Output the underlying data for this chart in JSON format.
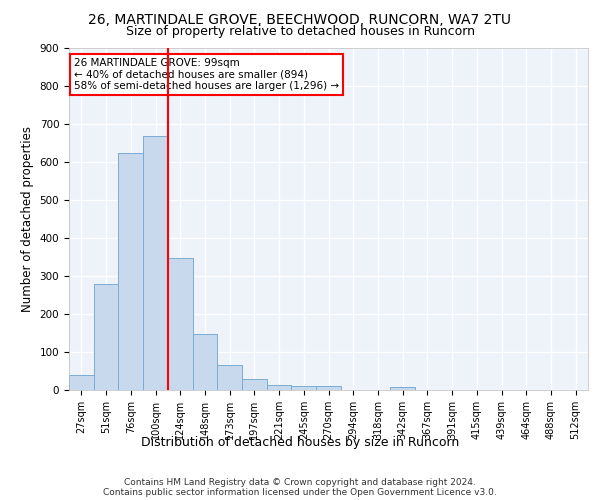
{
  "title1": "26, MARTINDALE GROVE, BEECHWOOD, RUNCORN, WA7 2TU",
  "title2": "Size of property relative to detached houses in Runcorn",
  "xlabel": "Distribution of detached houses by size in Runcorn",
  "ylabel": "Number of detached properties",
  "categories": [
    "27sqm",
    "51sqm",
    "76sqm",
    "100sqm",
    "124sqm",
    "148sqm",
    "173sqm",
    "197sqm",
    "221sqm",
    "245sqm",
    "270sqm",
    "294sqm",
    "318sqm",
    "342sqm",
    "367sqm",
    "391sqm",
    "415sqm",
    "439sqm",
    "464sqm",
    "488sqm",
    "512sqm"
  ],
  "values": [
    40,
    278,
    622,
    668,
    348,
    148,
    65,
    28,
    13,
    11,
    11,
    0,
    0,
    8,
    0,
    0,
    0,
    0,
    0,
    0,
    0
  ],
  "bar_color": "#c8d9ee",
  "bar_edge_color": "#7aadd4",
  "property_line_x": 3.5,
  "annotation_text": "26 MARTINDALE GROVE: 99sqm\n← 40% of detached houses are smaller (894)\n58% of semi-detached houses are larger (1,296) →",
  "annotation_box_color": "white",
  "annotation_box_edge": "red",
  "vline_color": "red",
  "ylim": [
    0,
    900
  ],
  "yticks": [
    0,
    100,
    200,
    300,
    400,
    500,
    600,
    700,
    800,
    900
  ],
  "footer": "Contains HM Land Registry data © Crown copyright and database right 2024.\nContains public sector information licensed under the Open Government Licence v3.0.",
  "background_color": "#eef2f9",
  "grid_color": "white",
  "title1_fontsize": 10,
  "title2_fontsize": 9,
  "axis_label_fontsize": 8.5,
  "tick_fontsize": 7,
  "annotation_fontsize": 7.5,
  "footer_fontsize": 6.5
}
